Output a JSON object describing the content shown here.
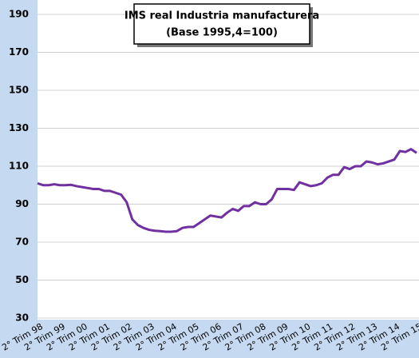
{
  "chart_data": {
    "type": "line",
    "title": "IMS real Industria manufacturera",
    "subtitle": "(Base 1995,4=100)",
    "categories": [
      "2° Trim 98",
      null,
      null,
      null,
      "2° Trim 99",
      null,
      null,
      null,
      "2° Trim 00",
      null,
      null,
      null,
      "2° Trim 01",
      null,
      null,
      null,
      "2° Trim 02",
      null,
      null,
      null,
      "2° Trim 03",
      null,
      null,
      null,
      "2° Trim 04",
      null,
      null,
      null,
      "2° Trim 05",
      null,
      null,
      null,
      "2° Trim 06",
      null,
      null,
      null,
      "2° Trim 07",
      null,
      null,
      null,
      "2° Trim 08",
      null,
      null,
      null,
      "2° Trim 09",
      null,
      null,
      null,
      "2° Trim 10",
      null,
      null,
      null,
      "2° Trim 11",
      null,
      null,
      null,
      "2° Trim 12",
      null,
      null,
      null,
      "2° Trim 13",
      null,
      null,
      null,
      "2° Trim 14",
      null,
      null,
      null,
      "2° Trim 15"
    ],
    "series": [
      {
        "color": "#7030a0",
        "values": [
          101,
          100,
          100,
          100.5,
          100,
          100,
          100.2,
          99.5,
          99,
          98.5,
          98,
          98,
          97,
          97,
          96,
          95,
          91,
          82,
          79,
          77.5,
          76.5,
          76,
          75.8,
          75.5,
          75.5,
          75.8,
          77.5,
          78,
          78,
          80,
          82,
          84,
          83.5,
          83,
          85.5,
          87.5,
          86.5,
          89,
          89,
          91,
          90,
          90,
          92.5,
          98,
          98,
          98,
          97.5,
          101.5,
          100.5,
          99.5,
          100,
          101,
          104,
          105.5,
          105.5,
          109.5,
          108.5,
          110,
          110,
          112.5,
          112,
          111,
          111.5,
          112.5,
          113.5,
          118,
          117.5,
          119,
          117
        ]
      }
    ],
    "ylim": [
      30,
      190
    ],
    "yticks": [
      30,
      50,
      70,
      90,
      110,
      130,
      150,
      170,
      190
    ],
    "grid": true
  }
}
